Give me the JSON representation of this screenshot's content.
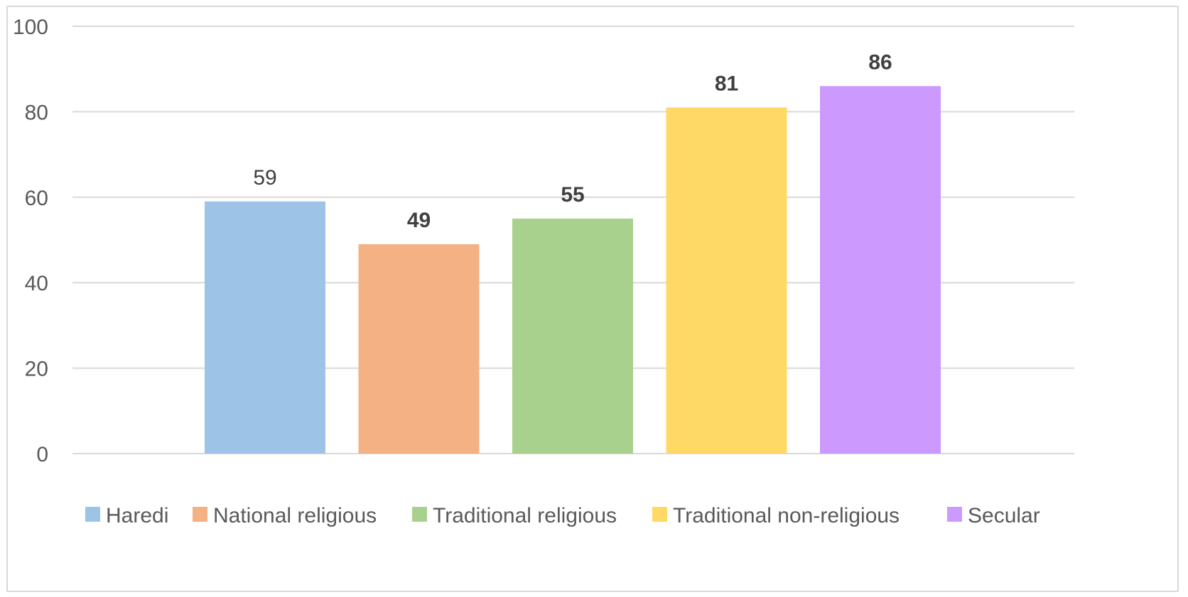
{
  "chart_data": {
    "type": "bar",
    "categories": [
      "Haredi",
      "National religious",
      "Traditional religious",
      "Traditional non-religious",
      "Secular"
    ],
    "values": [
      59,
      49,
      55,
      81,
      86
    ],
    "colors": [
      "#9dc3e6",
      "#f4b183",
      "#a9d18e",
      "#ffd966",
      "#cc99ff"
    ],
    "data_label_bold": [
      false,
      true,
      true,
      true,
      true
    ],
    "ylim": [
      0,
      100
    ],
    "yticks": [
      0,
      20,
      40,
      60,
      80,
      100
    ],
    "grid": true,
    "legend": {
      "position": "bottom",
      "entries": [
        "Haredi",
        "National religious",
        "Traditional religious",
        "Traditional non-religious",
        "Secular"
      ]
    },
    "title": "",
    "xlabel": "",
    "ylabel": ""
  }
}
